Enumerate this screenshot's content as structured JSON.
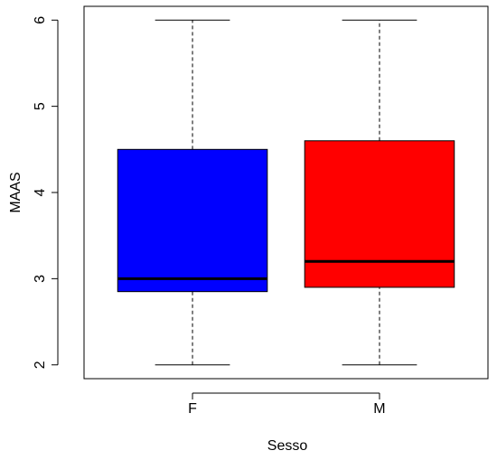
{
  "chart_data": {
    "type": "box",
    "x_label": "Sesso",
    "y_label": "MAAS",
    "categories": [
      "F",
      "M"
    ],
    "boxes": [
      {
        "min": 2,
        "q1": 2.85,
        "median": 3.0,
        "q3": 4.5,
        "max": 6,
        "color": "#0000ff"
      },
      {
        "min": 2,
        "q1": 2.9,
        "median": 3.2,
        "q3": 4.6,
        "max": 6,
        "color": "#ff0000"
      }
    ],
    "ylim": [
      1.84,
      6.16
    ],
    "yticks": [
      2,
      3,
      4,
      5,
      6
    ]
  }
}
